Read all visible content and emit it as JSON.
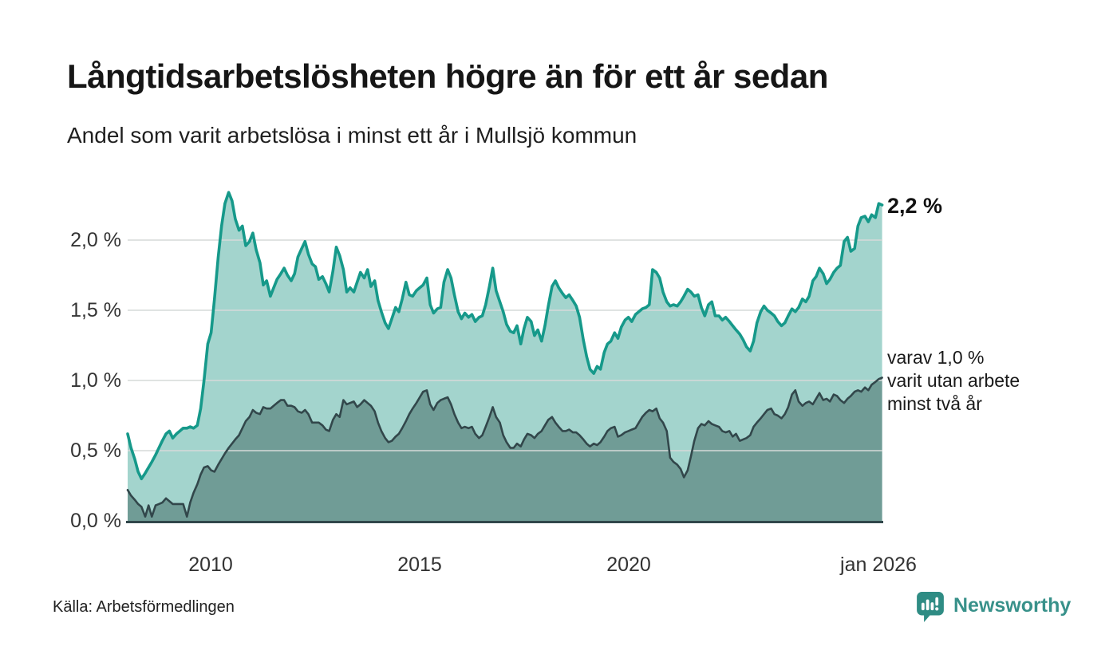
{
  "header": {
    "title": "Långtidsarbetslösheten högre än för ett år sedan",
    "subtitle": "Andel som varit arbetslösa i minst ett år i Mullsjö kommun"
  },
  "chart_data": {
    "type": "area",
    "title": "Långtidsarbetslösheten högre än för ett år sedan",
    "subtitle": "Andel som varit arbetslösa i minst ett år i Mullsjö kommun",
    "x_axis": {
      "tick_labels": [
        "2010",
        "2015",
        "2020",
        "jan 2026"
      ],
      "tick_years": [
        2010,
        2015,
        2020,
        2026.0
      ],
      "range": [
        2008.0,
        2026.08
      ],
      "unit": "år"
    },
    "y_axis": {
      "tick_labels_top_down": [
        "2,0 %",
        "1,5 %",
        "1,0 %",
        "0,5 %",
        "0,0 %"
      ],
      "tick_values": [
        2.0,
        1.5,
        1.0,
        0.5,
        0.0
      ],
      "grid_values": [
        0.5,
        1.0,
        1.5,
        2.0
      ],
      "range": [
        0,
        2.45
      ],
      "unit": "%"
    },
    "grid": true,
    "legend_position": "right-annotations",
    "series": [
      {
        "name": "Andel som varit arbetslösa i minst ett år",
        "latest_value": 2.2,
        "line_color": "#16998a",
        "fill_color": "#a3d4cd"
      },
      {
        "name": "varav utan arbete minst två år",
        "latest_value": 1.0,
        "line_color": "#32474b",
        "fill_color": "#709c96"
      }
    ],
    "points_format": [
      "year",
      "arbetslösa_minst_ett_år_pct",
      "utan_arbete_minst_två_år_pct"
    ],
    "points": [
      [
        2008.0,
        0.62,
        0.22
      ],
      [
        2008.08,
        0.52,
        0.18
      ],
      [
        2008.17,
        0.44,
        0.15
      ],
      [
        2008.25,
        0.35,
        0.12
      ],
      [
        2008.33,
        0.3,
        0.1
      ],
      [
        2008.42,
        0.34,
        0.03
      ],
      [
        2008.5,
        0.38,
        0.11
      ],
      [
        2008.58,
        0.42,
        0.03
      ],
      [
        2008.67,
        0.47,
        0.11
      ],
      [
        2008.75,
        0.52,
        0.12
      ],
      [
        2008.83,
        0.57,
        0.13
      ],
      [
        2008.92,
        0.62,
        0.16
      ],
      [
        2009.0,
        0.64,
        0.14
      ],
      [
        2009.08,
        0.59,
        0.12
      ],
      [
        2009.17,
        0.62,
        0.12
      ],
      [
        2009.25,
        0.64,
        0.12
      ],
      [
        2009.33,
        0.66,
        0.12
      ],
      [
        2009.42,
        0.66,
        0.03
      ],
      [
        2009.5,
        0.67,
        0.13
      ],
      [
        2009.58,
        0.66,
        0.2
      ],
      [
        2009.67,
        0.68,
        0.26
      ],
      [
        2009.75,
        0.8,
        0.33
      ],
      [
        2009.83,
        1.0,
        0.38
      ],
      [
        2009.92,
        1.26,
        0.39
      ],
      [
        2010.0,
        1.34,
        0.36
      ],
      [
        2010.08,
        1.58,
        0.35
      ],
      [
        2010.17,
        1.88,
        0.4
      ],
      [
        2010.25,
        2.1,
        0.44
      ],
      [
        2010.33,
        2.26,
        0.48
      ],
      [
        2010.42,
        2.34,
        0.52
      ],
      [
        2010.5,
        2.28,
        0.55
      ],
      [
        2010.58,
        2.15,
        0.58
      ],
      [
        2010.67,
        2.07,
        0.61
      ],
      [
        2010.75,
        2.1,
        0.66
      ],
      [
        2010.83,
        1.96,
        0.71
      ],
      [
        2010.92,
        1.99,
        0.74
      ],
      [
        2011.0,
        2.05,
        0.79
      ],
      [
        2011.08,
        1.93,
        0.77
      ],
      [
        2011.17,
        1.84,
        0.76
      ],
      [
        2011.25,
        1.68,
        0.81
      ],
      [
        2011.33,
        1.71,
        0.8
      ],
      [
        2011.42,
        1.6,
        0.8
      ],
      [
        2011.5,
        1.66,
        0.82
      ],
      [
        2011.58,
        1.72,
        0.84
      ],
      [
        2011.67,
        1.76,
        0.86
      ],
      [
        2011.75,
        1.8,
        0.86
      ],
      [
        2011.83,
        1.75,
        0.82
      ],
      [
        2011.92,
        1.71,
        0.82
      ],
      [
        2012.0,
        1.76,
        0.81
      ],
      [
        2012.08,
        1.88,
        0.78
      ],
      [
        2012.17,
        1.94,
        0.77
      ],
      [
        2012.25,
        1.99,
        0.79
      ],
      [
        2012.33,
        1.9,
        0.76
      ],
      [
        2012.42,
        1.83,
        0.7
      ],
      [
        2012.5,
        1.81,
        0.7
      ],
      [
        2012.58,
        1.72,
        0.7
      ],
      [
        2012.67,
        1.74,
        0.68
      ],
      [
        2012.75,
        1.69,
        0.65
      ],
      [
        2012.83,
        1.63,
        0.64
      ],
      [
        2012.92,
        1.78,
        0.72
      ],
      [
        2013.0,
        1.95,
        0.76
      ],
      [
        2013.08,
        1.89,
        0.74
      ],
      [
        2013.17,
        1.79,
        0.86
      ],
      [
        2013.25,
        1.63,
        0.83
      ],
      [
        2013.33,
        1.66,
        0.84
      ],
      [
        2013.42,
        1.63,
        0.85
      ],
      [
        2013.5,
        1.7,
        0.81
      ],
      [
        2013.58,
        1.77,
        0.83
      ],
      [
        2013.67,
        1.73,
        0.86
      ],
      [
        2013.75,
        1.79,
        0.84
      ],
      [
        2013.83,
        1.67,
        0.82
      ],
      [
        2013.92,
        1.71,
        0.78
      ],
      [
        2014.0,
        1.57,
        0.7
      ],
      [
        2014.08,
        1.49,
        0.64
      ],
      [
        2014.17,
        1.41,
        0.59
      ],
      [
        2014.25,
        1.37,
        0.56
      ],
      [
        2014.33,
        1.44,
        0.57
      ],
      [
        2014.42,
        1.52,
        0.6
      ],
      [
        2014.5,
        1.49,
        0.62
      ],
      [
        2014.58,
        1.58,
        0.66
      ],
      [
        2014.67,
        1.7,
        0.71
      ],
      [
        2014.75,
        1.61,
        0.76
      ],
      [
        2014.83,
        1.6,
        0.8
      ],
      [
        2014.92,
        1.64,
        0.84
      ],
      [
        2015.0,
        1.66,
        0.88
      ],
      [
        2015.08,
        1.68,
        0.92
      ],
      [
        2015.17,
        1.73,
        0.93
      ],
      [
        2015.25,
        1.54,
        0.83
      ],
      [
        2015.33,
        1.48,
        0.79
      ],
      [
        2015.42,
        1.51,
        0.84
      ],
      [
        2015.5,
        1.52,
        0.86
      ],
      [
        2015.58,
        1.7,
        0.87
      ],
      [
        2015.67,
        1.79,
        0.88
      ],
      [
        2015.75,
        1.73,
        0.83
      ],
      [
        2015.83,
        1.61,
        0.76
      ],
      [
        2015.92,
        1.49,
        0.7
      ],
      [
        2016.0,
        1.44,
        0.66
      ],
      [
        2016.08,
        1.48,
        0.67
      ],
      [
        2016.17,
        1.45,
        0.66
      ],
      [
        2016.25,
        1.47,
        0.67
      ],
      [
        2016.33,
        1.42,
        0.62
      ],
      [
        2016.42,
        1.45,
        0.59
      ],
      [
        2016.5,
        1.46,
        0.61
      ],
      [
        2016.58,
        1.54,
        0.67
      ],
      [
        2016.67,
        1.67,
        0.74
      ],
      [
        2016.75,
        1.8,
        0.81
      ],
      [
        2016.83,
        1.64,
        0.74
      ],
      [
        2016.92,
        1.56,
        0.7
      ],
      [
        2017.0,
        1.49,
        0.61
      ],
      [
        2017.08,
        1.4,
        0.56
      ],
      [
        2017.17,
        1.35,
        0.52
      ],
      [
        2017.25,
        1.34,
        0.52
      ],
      [
        2017.33,
        1.39,
        0.55
      ],
      [
        2017.42,
        1.26,
        0.53
      ],
      [
        2017.5,
        1.37,
        0.58
      ],
      [
        2017.58,
        1.45,
        0.62
      ],
      [
        2017.67,
        1.42,
        0.61
      ],
      [
        2017.75,
        1.32,
        0.59
      ],
      [
        2017.83,
        1.36,
        0.62
      ],
      [
        2017.92,
        1.28,
        0.64
      ],
      [
        2018.0,
        1.39,
        0.68
      ],
      [
        2018.08,
        1.53,
        0.72
      ],
      [
        2018.17,
        1.67,
        0.74
      ],
      [
        2018.25,
        1.71,
        0.7
      ],
      [
        2018.33,
        1.66,
        0.67
      ],
      [
        2018.42,
        1.62,
        0.64
      ],
      [
        2018.5,
        1.59,
        0.64
      ],
      [
        2018.58,
        1.61,
        0.65
      ],
      [
        2018.67,
        1.57,
        0.63
      ],
      [
        2018.75,
        1.53,
        0.63
      ],
      [
        2018.83,
        1.45,
        0.61
      ],
      [
        2018.92,
        1.29,
        0.58
      ],
      [
        2019.0,
        1.17,
        0.55
      ],
      [
        2019.08,
        1.08,
        0.53
      ],
      [
        2019.17,
        1.05,
        0.55
      ],
      [
        2019.25,
        1.1,
        0.54
      ],
      [
        2019.33,
        1.08,
        0.56
      ],
      [
        2019.42,
        1.2,
        0.6
      ],
      [
        2019.5,
        1.26,
        0.64
      ],
      [
        2019.58,
        1.28,
        0.66
      ],
      [
        2019.67,
        1.34,
        0.67
      ],
      [
        2019.75,
        1.3,
        0.6
      ],
      [
        2019.83,
        1.38,
        0.61
      ],
      [
        2019.92,
        1.43,
        0.63
      ],
      [
        2020.0,
        1.45,
        0.64
      ],
      [
        2020.08,
        1.42,
        0.65
      ],
      [
        2020.17,
        1.47,
        0.66
      ],
      [
        2020.25,
        1.49,
        0.7
      ],
      [
        2020.33,
        1.51,
        0.74
      ],
      [
        2020.42,
        1.52,
        0.77
      ],
      [
        2020.5,
        1.54,
        0.79
      ],
      [
        2020.58,
        1.79,
        0.78
      ],
      [
        2020.67,
        1.77,
        0.8
      ],
      [
        2020.75,
        1.73,
        0.73
      ],
      [
        2020.83,
        1.63,
        0.7
      ],
      [
        2020.92,
        1.56,
        0.64
      ],
      [
        2021.0,
        1.53,
        0.45
      ],
      [
        2021.08,
        1.54,
        0.42
      ],
      [
        2021.17,
        1.53,
        0.4
      ],
      [
        2021.25,
        1.56,
        0.37
      ],
      [
        2021.33,
        1.6,
        0.31
      ],
      [
        2021.42,
        1.65,
        0.36
      ],
      [
        2021.5,
        1.63,
        0.46
      ],
      [
        2021.58,
        1.6,
        0.57
      ],
      [
        2021.67,
        1.61,
        0.66
      ],
      [
        2021.75,
        1.52,
        0.69
      ],
      [
        2021.83,
        1.46,
        0.68
      ],
      [
        2021.92,
        1.54,
        0.71
      ],
      [
        2022.0,
        1.56,
        0.69
      ],
      [
        2022.08,
        1.46,
        0.68
      ],
      [
        2022.17,
        1.46,
        0.67
      ],
      [
        2022.25,
        1.43,
        0.64
      ],
      [
        2022.33,
        1.45,
        0.63
      ],
      [
        2022.42,
        1.42,
        0.64
      ],
      [
        2022.5,
        1.39,
        0.6
      ],
      [
        2022.58,
        1.36,
        0.62
      ],
      [
        2022.67,
        1.33,
        0.57
      ],
      [
        2022.75,
        1.29,
        0.58
      ],
      [
        2022.83,
        1.24,
        0.59
      ],
      [
        2022.92,
        1.21,
        0.61
      ],
      [
        2023.0,
        1.28,
        0.67
      ],
      [
        2023.08,
        1.41,
        0.7
      ],
      [
        2023.17,
        1.49,
        0.73
      ],
      [
        2023.25,
        1.53,
        0.76
      ],
      [
        2023.33,
        1.5,
        0.79
      ],
      [
        2023.42,
        1.48,
        0.8
      ],
      [
        2023.5,
        1.46,
        0.76
      ],
      [
        2023.58,
        1.42,
        0.75
      ],
      [
        2023.67,
        1.39,
        0.73
      ],
      [
        2023.75,
        1.41,
        0.76
      ],
      [
        2023.83,
        1.46,
        0.81
      ],
      [
        2023.92,
        1.51,
        0.9
      ],
      [
        2024.0,
        1.49,
        0.93
      ],
      [
        2024.08,
        1.52,
        0.85
      ],
      [
        2024.17,
        1.58,
        0.82
      ],
      [
        2024.25,
        1.56,
        0.84
      ],
      [
        2024.33,
        1.6,
        0.85
      ],
      [
        2024.42,
        1.71,
        0.83
      ],
      [
        2024.5,
        1.74,
        0.87
      ],
      [
        2024.58,
        1.8,
        0.91
      ],
      [
        2024.67,
        1.76,
        0.86
      ],
      [
        2024.75,
        1.69,
        0.87
      ],
      [
        2024.83,
        1.72,
        0.85
      ],
      [
        2024.92,
        1.77,
        0.9
      ],
      [
        2025.0,
        1.8,
        0.89
      ],
      [
        2025.08,
        1.82,
        0.86
      ],
      [
        2025.17,
        1.99,
        0.84
      ],
      [
        2025.25,
        2.02,
        0.87
      ],
      [
        2025.33,
        1.92,
        0.89
      ],
      [
        2025.42,
        1.94,
        0.92
      ],
      [
        2025.5,
        2.1,
        0.93
      ],
      [
        2025.58,
        2.16,
        0.92
      ],
      [
        2025.67,
        2.17,
        0.95
      ],
      [
        2025.75,
        2.13,
        0.93
      ],
      [
        2025.83,
        2.18,
        0.97
      ],
      [
        2025.92,
        2.16,
        0.99
      ],
      [
        2026.0,
        2.26,
        1.01
      ],
      [
        2026.08,
        2.25,
        1.02
      ]
    ],
    "annotations": {
      "latest_total": "2,2 %",
      "breakdown_line1": "varav 1,0 %",
      "breakdown_line2": "varit utan arbete",
      "breakdown_line3": "minst två år"
    }
  },
  "colors": {
    "total_line": "#16998a",
    "total_fill": "#a3d4cd",
    "twoyear_line": "#32474b",
    "twoyear_fill": "#709c96",
    "gridline": "#d6dad9",
    "axis_line": "#31474b",
    "brand_teal": "#38918a"
  },
  "footer": {
    "source": "Källa: Arbetsförmedlingen",
    "brand": "Newsworthy"
  }
}
